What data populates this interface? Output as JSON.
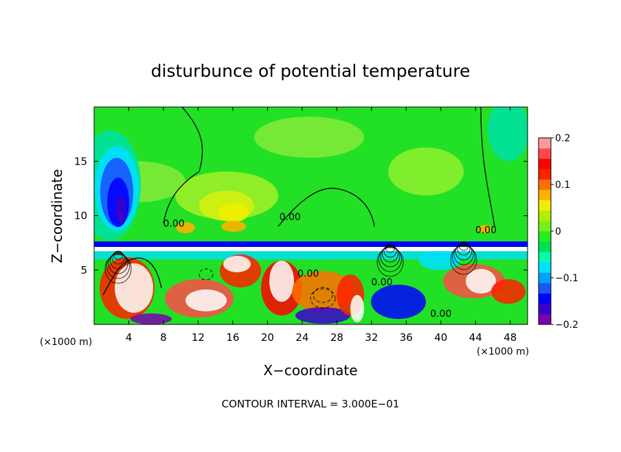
{
  "chart_data": {
    "type": "heatmap",
    "title": "disturbunce of potential temperature",
    "xlabel": "X−coordinate",
    "ylabel": "Z−coordinate",
    "x_unit_left": "(×1000 m)",
    "x_unit_right": "(×1000 m)",
    "footer": "CONTOUR INTERVAL = 3.000E−01",
    "xlim": [
      0,
      50
    ],
    "ylim": [
      0,
      20
    ],
    "x_ticks": [
      4,
      8,
      12,
      16,
      20,
      24,
      28,
      32,
      36,
      40,
      44,
      48
    ],
    "y_ticks": [
      5,
      10,
      15
    ],
    "colorbar": {
      "min": -0.2,
      "max": 0.2,
      "tick_values": [
        0.2,
        0.1,
        0,
        -0.1,
        -0.2
      ],
      "tick_labels": [
        "0.2",
        "0.1",
        "0",
        "−0.1",
        "−0.2"
      ],
      "colors": [
        "#7a00b0",
        "#3a00cc",
        "#0000ff",
        "#1a55ff",
        "#00a0ff",
        "#00e0ff",
        "#00ffb0",
        "#00e050",
        "#22ee22",
        "#77f020",
        "#b0f000",
        "#eeee00",
        "#ffb000",
        "#ff7000",
        "#ff2000",
        "#ff0000",
        "#ff4a4a",
        "#ff9a9a"
      ]
    },
    "contour_labels": [
      {
        "x": 9.2,
        "z": 9.0,
        "text": "0.00"
      },
      {
        "x": 22.6,
        "z": 9.6,
        "text": "0.00"
      },
      {
        "x": 45.2,
        "z": 8.4,
        "text": "0.00"
      },
      {
        "x": 24.7,
        "z": 4.4,
        "text": "0.00"
      },
      {
        "x": 33.2,
        "z": 3.6,
        "text": "0.00"
      },
      {
        "x": 40.0,
        "z": 0.7,
        "text": "0.00"
      }
    ]
  }
}
